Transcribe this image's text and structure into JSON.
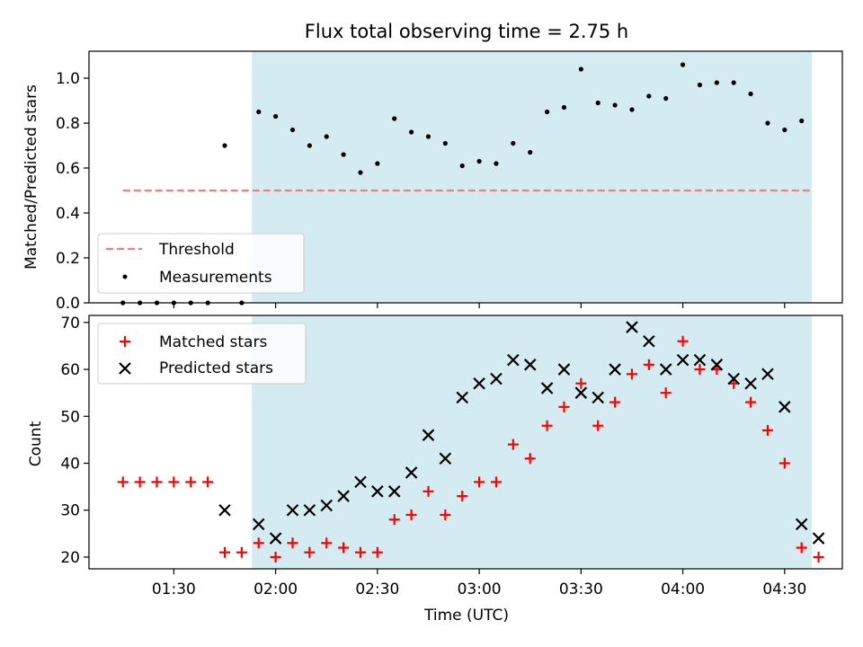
{
  "figure": {
    "title": "Flux total observing time = 2.75 h",
    "xlabel": "Time (UTC)",
    "x_tick_labels": [
      "01:30",
      "02:00",
      "02:30",
      "03:00",
      "03:30",
      "04:00",
      "04:30"
    ],
    "colors": {
      "observing_window": "#add8e6",
      "threshold": "#f08080",
      "measurements": "#000000",
      "matched": "#ff0000",
      "predicted": "#000000"
    }
  },
  "chart_data": [
    {
      "type": "scatter",
      "ylabel": "Matched/Predicted stars",
      "y_tick_labels": [
        "0.0",
        "0.2",
        "0.4",
        "0.6",
        "0.8",
        "1.0"
      ],
      "xlim": [
        "01:05",
        "04:47"
      ],
      "ylim": [
        0,
        1.12
      ],
      "grid": false,
      "legend_position": "lower-left",
      "observing_window": [
        "01:53",
        "04:38"
      ],
      "series": [
        {
          "name": "Threshold",
          "style": "dashed-line",
          "x": [
            "01:15",
            "04:38"
          ],
          "y": [
            0.5,
            0.5
          ]
        },
        {
          "name": "Measurements",
          "style": "dot",
          "x": [
            "01:15",
            "01:20",
            "01:25",
            "01:30",
            "01:35",
            "01:40",
            "01:45",
            "01:50",
            "01:55",
            "02:00",
            "02:05",
            "02:10",
            "02:15",
            "02:20",
            "02:25",
            "02:30",
            "02:35",
            "02:40",
            "02:45",
            "02:50",
            "02:55",
            "03:00",
            "03:05",
            "03:10",
            "03:15",
            "03:20",
            "03:25",
            "03:30",
            "03:35",
            "03:40",
            "03:45",
            "03:50",
            "03:55",
            "04:00",
            "04:05",
            "04:10",
            "04:15",
            "04:20",
            "04:25",
            "04:30",
            "04:35"
          ],
          "y": [
            0,
            0,
            0,
            0,
            0,
            0,
            0.7,
            0,
            0.85,
            0.83,
            0.77,
            0.7,
            0.74,
            0.66,
            0.58,
            0.62,
            0.82,
            0.76,
            0.74,
            0.71,
            0.61,
            0.63,
            0.62,
            0.71,
            0.67,
            0.85,
            0.87,
            1.04,
            0.89,
            0.88,
            0.86,
            0.92,
            0.91,
            1.06,
            0.97,
            0.98,
            0.98,
            0.93,
            0.8,
            0.77,
            0.81
          ]
        }
      ]
    },
    {
      "type": "scatter",
      "ylabel": "Count",
      "y_tick_labels": [
        "20",
        "30",
        "40",
        "50",
        "60",
        "70"
      ],
      "xlim": [
        "01:05",
        "04:47"
      ],
      "ylim": [
        17.5,
        71.5
      ],
      "grid": false,
      "legend_position": "upper-left",
      "observing_window": [
        "01:53",
        "04:38"
      ],
      "series": [
        {
          "name": "Matched stars",
          "marker": "plus",
          "x": [
            "01:15",
            "01:20",
            "01:25",
            "01:30",
            "01:35",
            "01:40",
            "01:45",
            "01:50",
            "01:55",
            "02:00",
            "02:05",
            "02:10",
            "02:15",
            "02:20",
            "02:25",
            "02:30",
            "02:35",
            "02:40",
            "02:45",
            "02:50",
            "02:55",
            "03:00",
            "03:05",
            "03:10",
            "03:15",
            "03:20",
            "03:25",
            "03:30",
            "03:35",
            "03:40",
            "03:45",
            "03:50",
            "03:55",
            "04:00",
            "04:05",
            "04:10",
            "04:15",
            "04:20",
            "04:25",
            "04:30",
            "04:35",
            "04:40"
          ],
          "y": [
            36,
            36,
            36,
            36,
            36,
            36,
            21,
            21,
            23,
            20,
            23,
            21,
            23,
            22,
            21,
            21,
            28,
            29,
            34,
            29,
            33,
            36,
            36,
            44,
            41,
            48,
            52,
            57,
            48,
            53,
            59,
            61,
            55,
            66,
            60,
            60,
            57,
            53,
            47,
            40,
            22,
            20
          ]
        },
        {
          "name": "Predicted stars",
          "marker": "x",
          "x": [
            "01:45",
            "01:55",
            "02:00",
            "02:05",
            "02:10",
            "02:15",
            "02:20",
            "02:25",
            "02:30",
            "02:35",
            "02:40",
            "02:45",
            "02:50",
            "02:55",
            "03:00",
            "03:05",
            "03:10",
            "03:15",
            "03:20",
            "03:25",
            "03:30",
            "03:35",
            "03:40",
            "03:45",
            "03:50",
            "03:55",
            "04:00",
            "04:05",
            "04:10",
            "04:15",
            "04:20",
            "04:25",
            "04:30",
            "04:35",
            "04:40"
          ],
          "y": [
            30,
            27,
            24,
            30,
            30,
            31,
            33,
            36,
            34,
            34,
            38,
            46,
            41,
            54,
            57,
            58,
            62,
            61,
            56,
            60,
            55,
            54,
            60,
            69,
            66,
            60,
            62,
            62,
            61,
            58,
            57,
            59,
            52,
            27,
            24
          ]
        }
      ]
    }
  ]
}
